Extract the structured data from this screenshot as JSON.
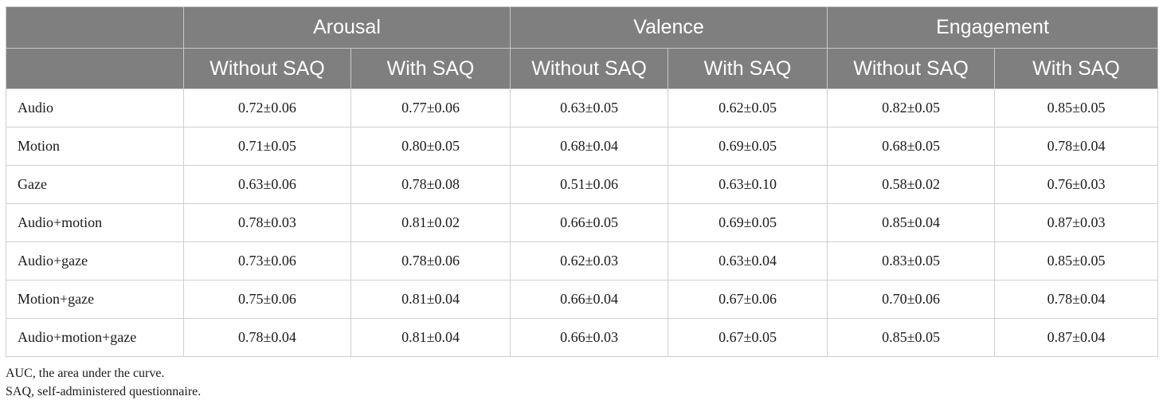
{
  "table": {
    "groups": [
      "Arousal",
      "Valence",
      "Engagement"
    ],
    "subheaders": [
      "Without SAQ",
      "With SAQ",
      "Without SAQ",
      "With SAQ",
      "Without SAQ",
      "With SAQ"
    ],
    "rows": [
      {
        "label": "Audio",
        "values": [
          "0.72±0.06",
          "0.77±0.06",
          "0.63±0.05",
          "0.62±0.05",
          "0.82±0.05",
          "0.85±0.05"
        ]
      },
      {
        "label": "Motion",
        "values": [
          "0.71±0.05",
          "0.80±0.05",
          "0.68±0.04",
          "0.69±0.05",
          "0.68±0.05",
          "0.78±0.04"
        ]
      },
      {
        "label": "Gaze",
        "values": [
          "0.63±0.06",
          "0.78±0.08",
          "0.51±0.06",
          "0.63±0.10",
          "0.58±0.02",
          "0.76±0.03"
        ]
      },
      {
        "label": "Audio+motion",
        "values": [
          "0.78±0.03",
          "0.81±0.02",
          "0.66±0.05",
          "0.69±0.05",
          "0.85±0.04",
          "0.87±0.03"
        ]
      },
      {
        "label": "Audio+gaze",
        "values": [
          "0.73±0.06",
          "0.78±0.06",
          "0.62±0.03",
          "0.63±0.04",
          "0.83±0.05",
          "0.85±0.05"
        ]
      },
      {
        "label": "Motion+gaze",
        "values": [
          "0.75±0.06",
          "0.81±0.04",
          "0.66±0.04",
          "0.67±0.06",
          "0.70±0.06",
          "0.78±0.04"
        ]
      },
      {
        "label": "Audio+motion+gaze",
        "values": [
          "0.78±0.04",
          "0.81±0.04",
          "0.66±0.03",
          "0.67±0.05",
          "0.85±0.05",
          "0.87±0.04"
        ]
      }
    ]
  },
  "footnotes": [
    "AUC, the area under the curve.",
    "SAQ, self-administered questionnaire."
  ],
  "colors": {
    "header_bg": "#7f7f7f",
    "header_text": "#ffffff",
    "border": "#cfcfcf"
  }
}
